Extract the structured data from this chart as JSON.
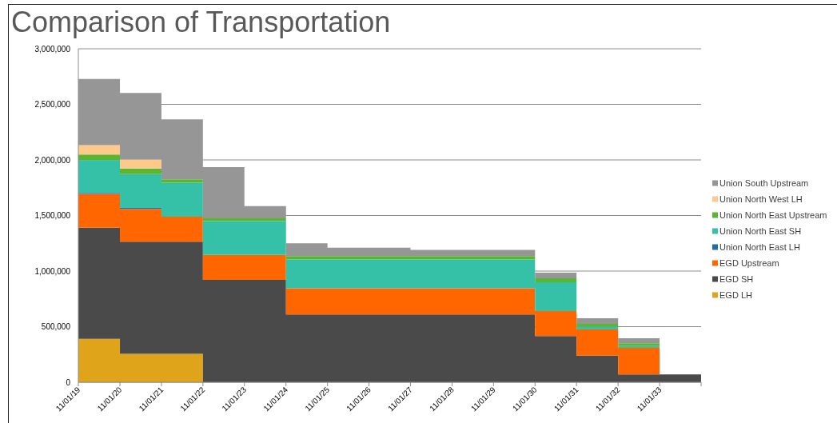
{
  "chart_data": {
    "type": "area",
    "stacked": true,
    "title": "Comparison of Transportation",
    "x": [
      "2019-11-01",
      "2020-11-01",
      "2020-11-01",
      "2021-11-01",
      "2021-11-01",
      "2022-11-01",
      "2022-11-01",
      "2023-11-01",
      "2023-11-01",
      "2024-11-01",
      "2024-11-01",
      "2025-11-01",
      "2025-11-01",
      "2026-11-01",
      "2026-11-01",
      "2027-11-01",
      "2027-11-01",
      "2028-11-01",
      "2028-11-01",
      "2029-11-01",
      "2029-11-01",
      "2030-11-01",
      "2030-11-01",
      "2031-11-01",
      "2031-11-01",
      "2032-11-01",
      "2032-11-01",
      "2033-11-01",
      "2033-11-01",
      "2034-11-01"
    ],
    "xlim": [
      "2019-11-01",
      "2034-11-01"
    ],
    "xticks": [
      {
        "value": "2019-11-01",
        "label": "11/01/19"
      },
      {
        "value": "2020-11-01",
        "label": "11/01/20"
      },
      {
        "value": "2021-11-01",
        "label": "11/01/21"
      },
      {
        "value": "2022-11-01",
        "label": "11/01/22"
      },
      {
        "value": "2023-11-01",
        "label": "11/01/23"
      },
      {
        "value": "2024-11-01",
        "label": "11/01/24"
      },
      {
        "value": "2025-11-01",
        "label": "11/01/25"
      },
      {
        "value": "2026-11-01",
        "label": "11/01/26"
      },
      {
        "value": "2027-11-01",
        "label": "11/01/27"
      },
      {
        "value": "2028-11-01",
        "label": "11/01/28"
      },
      {
        "value": "2029-11-01",
        "label": "11/01/29"
      },
      {
        "value": "2030-11-01",
        "label": "11/01/30"
      },
      {
        "value": "2031-11-01",
        "label": "11/01/31"
      },
      {
        "value": "2032-11-01",
        "label": "11/01/32"
      },
      {
        "value": "2033-11-01",
        "label": "11/01/33"
      },
      {
        "value": "2034-11-01",
        "label": null
      }
    ],
    "ylim": [
      0,
      3000000
    ],
    "yticks": [
      0,
      {
        "value": 500000,
        "label": "500,000"
      },
      {
        "value": 1000000,
        "label": "1,000,000"
      },
      {
        "value": 1500000,
        "label": "1,500,000"
      },
      {
        "value": 2000000,
        "label": "2,000,000"
      },
      {
        "value": 2500000,
        "label": "2,500,000"
      },
      {
        "value": 3000000,
        "label": "3,000,000"
      }
    ],
    "grid": "y",
    "legend": "right",
    "series": [
      {
        "name": "EGD LH",
        "color": "#e0a41b",
        "values": [
          390000,
          390000,
          255000,
          255000,
          255000,
          255000,
          0,
          0,
          0,
          0,
          0,
          0,
          0,
          0,
          0,
          0,
          0,
          0,
          0,
          0,
          0,
          0,
          0,
          0,
          0,
          0,
          0,
          0,
          0,
          0
        ]
      },
      {
        "name": "EGD SH",
        "color": "#4a4a4a",
        "values": [
          1000000,
          1000000,
          1010000,
          1010000,
          1010000,
          1010000,
          920000,
          920000,
          920000,
          920000,
          610000,
          610000,
          610000,
          610000,
          610000,
          610000,
          610000,
          610000,
          610000,
          610000,
          610000,
          610000,
          415000,
          415000,
          240000,
          240000,
          70000,
          70000,
          70000,
          70000
        ]
      },
      {
        "name": "EGD Upstream",
        "color": "#ff6600",
        "values": [
          305000,
          305000,
          295000,
          295000,
          225000,
          225000,
          225000,
          225000,
          225000,
          225000,
          235000,
          235000,
          235000,
          235000,
          235000,
          235000,
          235000,
          235000,
          235000,
          235000,
          235000,
          235000,
          225000,
          225000,
          235000,
          235000,
          240000,
          240000,
          0,
          0
        ]
      },
      {
        "name": "Union North East LH",
        "color": "#1f6fa8",
        "values": [
          8000,
          8000,
          8000,
          8000,
          0,
          0,
          0,
          0,
          0,
          0,
          0,
          0,
          0,
          0,
          0,
          0,
          0,
          0,
          0,
          0,
          0,
          0,
          0,
          0,
          0,
          0,
          0,
          0,
          0,
          0
        ]
      },
      {
        "name": "Union North East SH",
        "color": "#35c1a8",
        "values": [
          295000,
          295000,
          305000,
          305000,
          305000,
          305000,
          305000,
          305000,
          305000,
          305000,
          260000,
          260000,
          260000,
          260000,
          260000,
          260000,
          260000,
          260000,
          260000,
          260000,
          260000,
          260000,
          260000,
          260000,
          25000,
          25000,
          15000,
          15000,
          0,
          0
        ]
      },
      {
        "name": "Union North East Upstream",
        "color": "#5ab531",
        "values": [
          50000,
          50000,
          50000,
          50000,
          30000,
          30000,
          25000,
          25000,
          25000,
          25000,
          30000,
          30000,
          30000,
          30000,
          30000,
          30000,
          30000,
          30000,
          30000,
          30000,
          30000,
          30000,
          35000,
          35000,
          25000,
          25000,
          25000,
          25000,
          0,
          0
        ]
      },
      {
        "name": "Union North West LH",
        "color": "#fdca8c",
        "values": [
          85000,
          85000,
          80000,
          80000,
          0,
          0,
          0,
          0,
          0,
          0,
          0,
          0,
          0,
          0,
          0,
          0,
          0,
          0,
          0,
          0,
          0,
          0,
          0,
          0,
          0,
          0,
          0,
          0,
          0,
          0
        ]
      },
      {
        "name": "Union South Upstream",
        "color": "#969696",
        "values": [
          595000,
          595000,
          600000,
          600000,
          540000,
          540000,
          460000,
          460000,
          110000,
          110000,
          115000,
          115000,
          75000,
          75000,
          75000,
          75000,
          55000,
          55000,
          55000,
          55000,
          55000,
          55000,
          50000,
          50000,
          50000,
          50000,
          45000,
          45000,
          0,
          0
        ]
      }
    ]
  }
}
